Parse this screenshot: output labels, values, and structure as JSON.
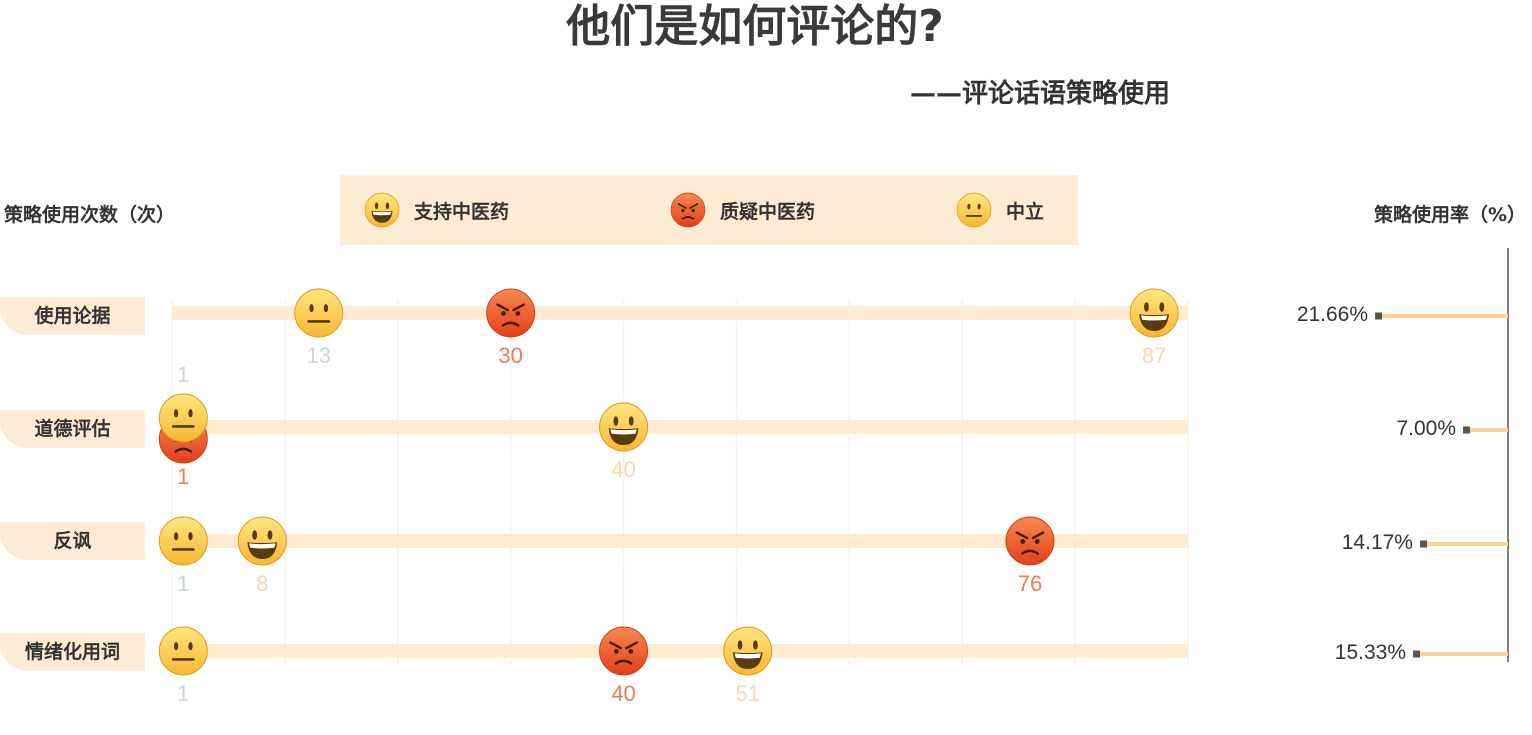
{
  "title": "他们是如何评论的?",
  "subtitle": "——评论话语策略使用",
  "axis_left_label": "策略使用次数（次）",
  "axis_right_label": "策略使用率（%）",
  "legend": [
    {
      "label": "支持中医药",
      "icon": "grinning-face-icon"
    },
    {
      "label": "质疑中医药",
      "icon": "angry-face-icon"
    },
    {
      "label": "中立",
      "icon": "neutral-face-icon"
    }
  ],
  "colors": {
    "band": "#fdebd3",
    "support_number": "#f6d7ae",
    "question_number": "#ef7b5c",
    "neutral_number": "#c9d6dc",
    "rate_bar": "#ffd28f",
    "rate_marker": "#555555"
  },
  "chart_data": {
    "type": "scatter",
    "title": "他们是如何评论的?",
    "subtitle": "——评论话语策略使用",
    "categories": [
      "使用论据",
      "道德评估",
      "反讽",
      "情绪化用词"
    ],
    "xlim": [
      0,
      90
    ],
    "xlabel": "策略使用次数（次）",
    "series": [
      {
        "name": "支持中医药",
        "values": [
          87,
          40,
          8,
          51
        ]
      },
      {
        "name": "质疑中医药",
        "values": [
          30,
          1,
          76,
          40
        ]
      },
      {
        "name": "中立",
        "values": [
          13,
          1,
          1,
          1
        ]
      }
    ],
    "rates": {
      "label": "策略使用率（%）",
      "values": [
        21.66,
        7.0,
        14.17,
        15.33
      ],
      "display": [
        "21.66%",
        "7.00%",
        "14.17%",
        "15.33%"
      ]
    },
    "grid": true
  }
}
